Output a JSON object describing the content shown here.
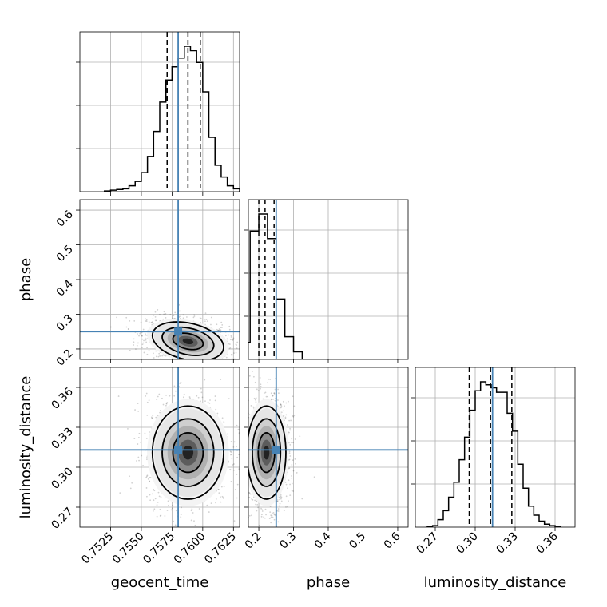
{
  "chart_data": {
    "type": "corner",
    "parameters": [
      "geocent_time",
      "phase",
      "luminosity_distance"
    ],
    "truths": {
      "geocent_time": 0.758,
      "phase": 0.25,
      "luminosity_distance": 0.313
    },
    "colors": {
      "truth": "#4682b4",
      "hist": "#000000",
      "grid": "#b0b0b0"
    },
    "axes": {
      "geocent_time": {
        "range": [
          0.75,
          0.763
        ],
        "ticks": [
          0.7525,
          0.755,
          0.7575,
          0.76,
          0.7625
        ],
        "tick_labels": [
          "0.7525",
          "0.7550",
          "0.7575",
          "0.7600",
          "0.7625"
        ],
        "label": "geocent_time"
      },
      "phase": {
        "range": [
          0.17,
          0.63
        ],
        "ticks": [
          0.2,
          0.3,
          0.4,
          0.5,
          0.6
        ],
        "tick_labels": [
          "0.2",
          "0.3",
          "0.4",
          "0.5",
          "0.6"
        ],
        "label": "phase"
      },
      "luminosity_distance": {
        "range": [
          0.255,
          0.375
        ],
        "ticks": [
          0.27,
          0.3,
          0.33,
          0.36
        ],
        "tick_labels": [
          "0.27",
          "0.30",
          "0.33",
          "0.36"
        ],
        "label": "luminosity_distance"
      }
    },
    "marginals": {
      "geocent_time": {
        "bin_edges": [
          0.752,
          0.7525,
          0.753,
          0.7535,
          0.754,
          0.7545,
          0.755,
          0.7555,
          0.756,
          0.7565,
          0.757,
          0.7575,
          0.758,
          0.7585,
          0.759,
          0.7595,
          0.76,
          0.7605,
          0.761,
          0.7615,
          0.762,
          0.7625,
          0.763
        ],
        "counts": [
          0.005,
          0.01,
          0.015,
          0.02,
          0.04,
          0.07,
          0.13,
          0.24,
          0.41,
          0.61,
          0.76,
          0.85,
          0.91,
          0.99,
          0.96,
          0.88,
          0.68,
          0.37,
          0.18,
          0.1,
          0.04,
          0.02
        ],
        "quantiles": [
          0.7571,
          0.7588,
          0.7598
        ]
      },
      "phase": {
        "bin_edges": [
          0.15,
          0.175,
          0.2,
          0.225,
          0.25,
          0.275,
          0.3,
          0.325
        ],
        "counts": [
          0.09,
          0.68,
          0.77,
          0.64,
          0.32,
          0.12,
          0.04
        ],
        "quantiles": [
          0.2,
          0.218,
          0.244
        ]
      },
      "luminosity_distance": {
        "bin_edges": [
          0.264,
          0.268,
          0.272,
          0.276,
          0.28,
          0.284,
          0.288,
          0.292,
          0.296,
          0.3,
          0.304,
          0.308,
          0.312,
          0.316,
          0.32,
          0.324,
          0.328,
          0.332,
          0.336,
          0.34,
          0.344,
          0.348,
          0.352,
          0.356,
          0.36,
          0.364
        ],
        "counts": [
          0.003,
          0.01,
          0.05,
          0.11,
          0.2,
          0.3,
          0.45,
          0.6,
          0.78,
          0.91,
          0.97,
          0.95,
          0.93,
          0.9,
          0.9,
          0.76,
          0.64,
          0.42,
          0.26,
          0.14,
          0.08,
          0.04,
          0.02,
          0.01,
          0.005
        ],
        "quantiles": [
          0.2955,
          0.3115,
          0.3275
        ]
      }
    },
    "posterior": {
      "geocent_time_phase": {
        "mean": [
          0.7588,
          0.222
        ],
        "sigma": [
          0.00145,
          0.028
        ],
        "rho": -0.3
      },
      "geocent_time_luminosity_distance": {
        "mean": [
          0.7588,
          0.311
        ],
        "sigma": [
          0.00145,
          0.0175
        ],
        "rho": 0.0
      },
      "phase_luminosity_distance": {
        "mean": [
          0.222,
          0.311
        ],
        "sigma": [
          0.028,
          0.0175
        ],
        "rho": 0.0
      }
    }
  }
}
